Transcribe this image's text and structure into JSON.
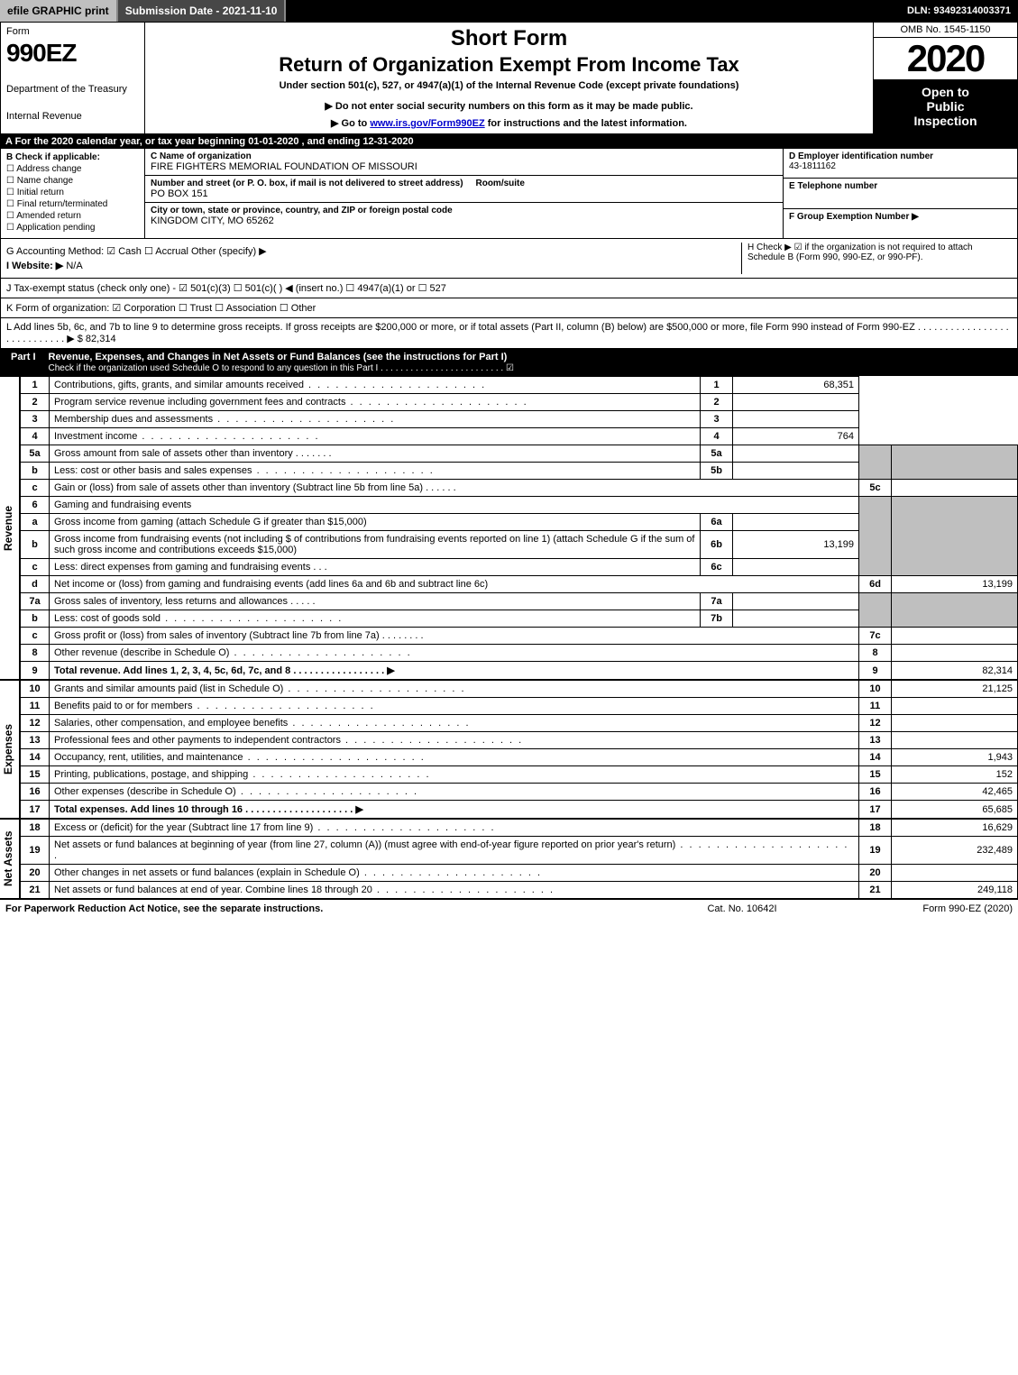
{
  "topbar": {
    "efile": "efile GRAPHIC print",
    "submission": "Submission Date - 2021-11-10",
    "dln": "DLN: 93492314003371"
  },
  "header": {
    "form_label": "Form",
    "form_number": "990EZ",
    "dept1": "Department of the Treasury",
    "dept2": "Internal Revenue",
    "short_form": "Short Form",
    "return_title": "Return of Organization Exempt From Income Tax",
    "under": "Under section 501(c), 527, or 4947(a)(1) of the Internal Revenue Code (except private foundations)",
    "warn": "▶ Do not enter social security numbers on this form as it may be made public.",
    "goto_pre": "▶ Go to ",
    "goto_link": "www.irs.gov/Form990EZ",
    "goto_post": " for instructions and the latest information.",
    "omb": "OMB No. 1545-1150",
    "year": "2020",
    "open1": "Open to",
    "open2": "Public",
    "open3": "Inspection"
  },
  "row_a": "A For the 2020 calendar year, or tax year beginning 01-01-2020 , and ending 12-31-2020",
  "box_b": {
    "title": "B  Check if applicable:",
    "items": [
      "Address change",
      "Name change",
      "Initial return",
      "Final return/terminated",
      "Amended return",
      "Application pending"
    ]
  },
  "box_c": {
    "name_label": "C Name of organization",
    "name": "FIRE FIGHTERS MEMORIAL FOUNDATION OF MISSOURI",
    "addr_label": "Number and street (or P. O. box, if mail is not delivered to street address)",
    "room_label": "Room/suite",
    "addr": "PO BOX 151",
    "city_label": "City or town, state or province, country, and ZIP or foreign postal code",
    "city": "KINGDOM CITY, MO  65262"
  },
  "box_d": {
    "label": "D Employer identification number",
    "val": "43-1811162"
  },
  "box_e": {
    "label": "E Telephone number",
    "val": ""
  },
  "box_f": {
    "label": "F Group Exemption Number  ▶",
    "val": ""
  },
  "row_g": "G Accounting Method:   ☑ Cash  ☐ Accrual  Other (specify) ▶",
  "row_h": "H  Check ▶ ☑ if the organization is not required to attach Schedule B (Form 990, 990-EZ, or 990-PF).",
  "row_i_label": "I Website: ▶",
  "row_i_val": "N/A",
  "row_j": "J Tax-exempt status (check only one) - ☑ 501(c)(3) ☐ 501(c)(  ) ◀ (insert no.) ☐ 4947(a)(1) or ☐ 527",
  "row_k": "K Form of organization:  ☑ Corporation  ☐ Trust  ☐ Association  ☐ Other",
  "row_l": "L Add lines 5b, 6c, and 7b to line 9 to determine gross receipts. If gross receipts are $200,000 or more, or if total assets (Part II, column (B) below) are $500,000 or more, file Form 990 instead of Form 990-EZ  . . . . . . . . . . . . . . . . . . . . . . . . . . . . ▶ $ 82,314",
  "part1": {
    "tag": "Part I",
    "title": "Revenue, Expenses, and Changes in Net Assets or Fund Balances (see the instructions for Part I)",
    "sub": "Check if the organization used Schedule O to respond to any question in this Part I . . . . . . . . . . . . . . . . . . . . . . . . .  ☑"
  },
  "revenue_label": "Revenue",
  "expenses_label": "Expenses",
  "netassets_label": "Net Assets",
  "lines": {
    "l1": {
      "n": "1",
      "d": "Contributions, gifts, grants, and similar amounts received",
      "r": "1",
      "a": "68,351"
    },
    "l2": {
      "n": "2",
      "d": "Program service revenue including government fees and contracts",
      "r": "2",
      "a": ""
    },
    "l3": {
      "n": "3",
      "d": "Membership dues and assessments",
      "r": "3",
      "a": ""
    },
    "l4": {
      "n": "4",
      "d": "Investment income",
      "r": "4",
      "a": "764"
    },
    "l5a": {
      "n": "5a",
      "d": "Gross amount from sale of assets other than inventory",
      "sn": "5a",
      "sv": ""
    },
    "l5b": {
      "n": "b",
      "d": "Less: cost or other basis and sales expenses",
      "sn": "5b",
      "sv": ""
    },
    "l5c": {
      "n": "c",
      "d": "Gain or (loss) from sale of assets other than inventory (Subtract line 5b from line 5a)",
      "r": "5c",
      "a": ""
    },
    "l6": {
      "n": "6",
      "d": "Gaming and fundraising events"
    },
    "l6a": {
      "n": "a",
      "d": "Gross income from gaming (attach Schedule G if greater than $15,000)",
      "sn": "6a",
      "sv": ""
    },
    "l6b": {
      "n": "b",
      "d": "Gross income from fundraising events (not including $               of contributions from fundraising events reported on line 1) (attach Schedule G if the sum of such gross income and contributions exceeds $15,000)",
      "sn": "6b",
      "sv": "13,199"
    },
    "l6c": {
      "n": "c",
      "d": "Less: direct expenses from gaming and fundraising events",
      "sn": "6c",
      "sv": ""
    },
    "l6d": {
      "n": "d",
      "d": "Net income or (loss) from gaming and fundraising events (add lines 6a and 6b and subtract line 6c)",
      "r": "6d",
      "a": "13,199"
    },
    "l7a": {
      "n": "7a",
      "d": "Gross sales of inventory, less returns and allowances",
      "sn": "7a",
      "sv": ""
    },
    "l7b": {
      "n": "b",
      "d": "Less: cost of goods sold",
      "sn": "7b",
      "sv": ""
    },
    "l7c": {
      "n": "c",
      "d": "Gross profit or (loss) from sales of inventory (Subtract line 7b from line 7a)",
      "r": "7c",
      "a": ""
    },
    "l8": {
      "n": "8",
      "d": "Other revenue (describe in Schedule O)",
      "r": "8",
      "a": ""
    },
    "l9": {
      "n": "9",
      "d": "Total revenue. Add lines 1, 2, 3, 4, 5c, 6d, 7c, and 8   . . . . . . . . . . . . . . . . . ▶",
      "r": "9",
      "a": "82,314"
    },
    "l10": {
      "n": "10",
      "d": "Grants and similar amounts paid (list in Schedule O)",
      "r": "10",
      "a": "21,125"
    },
    "l11": {
      "n": "11",
      "d": "Benefits paid to or for members",
      "r": "11",
      "a": ""
    },
    "l12": {
      "n": "12",
      "d": "Salaries, other compensation, and employee benefits",
      "r": "12",
      "a": ""
    },
    "l13": {
      "n": "13",
      "d": "Professional fees and other payments to independent contractors",
      "r": "13",
      "a": ""
    },
    "l14": {
      "n": "14",
      "d": "Occupancy, rent, utilities, and maintenance",
      "r": "14",
      "a": "1,943"
    },
    "l15": {
      "n": "15",
      "d": "Printing, publications, postage, and shipping",
      "r": "15",
      "a": "152"
    },
    "l16": {
      "n": "16",
      "d": "Other expenses (describe in Schedule O)",
      "r": "16",
      "a": "42,465"
    },
    "l17": {
      "n": "17",
      "d": "Total expenses. Add lines 10 through 16   . . . . . . . . . . . . . . . . . . . . ▶",
      "r": "17",
      "a": "65,685"
    },
    "l18": {
      "n": "18",
      "d": "Excess or (deficit) for the year (Subtract line 17 from line 9)",
      "r": "18",
      "a": "16,629"
    },
    "l19": {
      "n": "19",
      "d": "Net assets or fund balances at beginning of year (from line 27, column (A)) (must agree with end-of-year figure reported on prior year's return)",
      "r": "19",
      "a": "232,489"
    },
    "l20": {
      "n": "20",
      "d": "Other changes in net assets or fund balances (explain in Schedule O)",
      "r": "20",
      "a": ""
    },
    "l21": {
      "n": "21",
      "d": "Net assets or fund balances at end of year. Combine lines 18 through 20",
      "r": "21",
      "a": "249,118"
    }
  },
  "footer": {
    "l": "For Paperwork Reduction Act Notice, see the separate instructions.",
    "m": "Cat. No. 10642I",
    "r": "Form 990-EZ (2020)"
  },
  "colors": {
    "black": "#000000",
    "grey": "#bfbfbf",
    "darkgrey": "#474747",
    "link": "#0000cc"
  }
}
